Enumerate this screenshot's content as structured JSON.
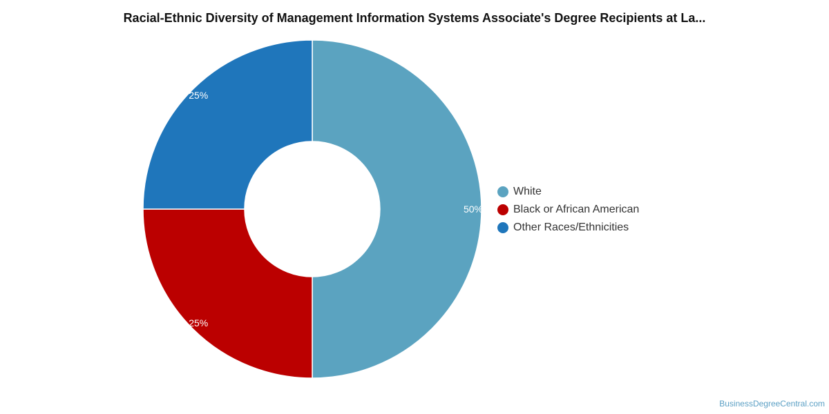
{
  "chart_data": {
    "type": "pie",
    "title": "Racial-Ethnic Diversity of Management Information Systems Associate's Degree Recipients at La...",
    "donut": true,
    "legend_position": "right",
    "series": [
      {
        "name": "White",
        "value": 50,
        "label": "50%",
        "color": "#5ba3c0"
      },
      {
        "name": "Black or African American",
        "value": 25,
        "label": "25%",
        "color": "#bb0000"
      },
      {
        "name": "Other Races/Ethnicities",
        "value": 25,
        "label": "25%",
        "color": "#1f76bb"
      }
    ]
  },
  "watermark": "BusinessDegreeCentral.com"
}
